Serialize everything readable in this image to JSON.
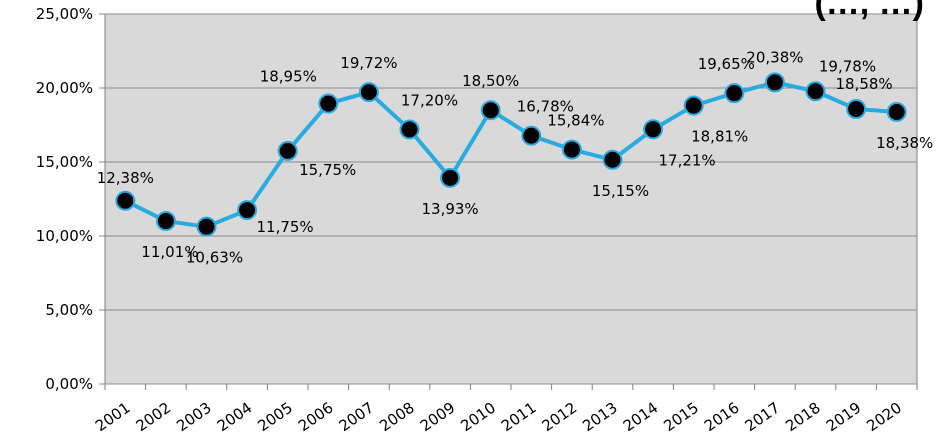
{
  "chart_data": {
    "type": "line",
    "title": "(…, …)",
    "categories": [
      "2001",
      "2002",
      "2003",
      "2004",
      "2005",
      "2006",
      "2007",
      "2008",
      "2009",
      "2010",
      "2011",
      "2012",
      "2013",
      "2014",
      "2015",
      "2016",
      "2017",
      "2018",
      "2019",
      "2020"
    ],
    "series": [
      {
        "values": [
          12.38,
          11.01,
          10.63,
          11.75,
          15.75,
          18.95,
          19.72,
          17.2,
          13.93,
          18.5,
          16.78,
          15.84,
          15.15,
          17.21,
          18.81,
          19.65,
          20.38,
          19.78,
          18.58,
          18.38
        ],
        "labels": [
          "12,38%",
          "11,01%",
          "10,63%",
          "11,75%",
          "15,75%",
          "18,95%",
          "19,72%",
          "17,20%",
          "13,93%",
          "18,50%",
          "16,78%",
          "15,84%",
          "15,15%",
          "17,21%",
          "18,81%",
          "19,65%",
          "20,38%",
          "19,78%",
          "18,58%",
          "18,38%"
        ]
      }
    ],
    "ylim": [
      0,
      25
    ],
    "y_ticks": [
      0,
      5,
      10,
      15,
      20,
      25
    ],
    "y_tick_labels": [
      "0,00%",
      "5,00%",
      "10,00%",
      "15,00%",
      "20,00%",
      "25,00%"
    ],
    "xlabel": "",
    "ylabel": "",
    "grid": true,
    "colors": {
      "plot_background": "#d9d9d9",
      "line": "#29abe2",
      "marker": "#000000",
      "gridline": "#8c8c8c"
    }
  }
}
